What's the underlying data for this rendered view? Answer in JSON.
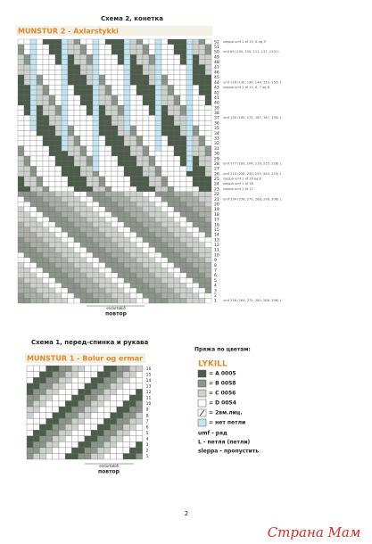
{
  "scheme2": {
    "heading": "Схема 2, конетка",
    "title": "MUNSTUR 2 - Axlarstykki",
    "row_numbers": [
      "1",
      "2",
      "3",
      "4",
      "5",
      "6",
      "7",
      "8",
      "9",
      "10",
      "11",
      "12",
      "13",
      "14",
      "15",
      "16",
      "17",
      "18",
      "19",
      "20",
      "21",
      "22",
      "23",
      "24",
      "25",
      "26",
      "27",
      "28",
      "29",
      "30",
      "31",
      "32",
      "33",
      "34",
      "35",
      "36",
      "37",
      "38",
      "39",
      "40",
      "41",
      "42",
      "43",
      "44",
      "45",
      "46",
      "47",
      "48",
      "49",
      "50",
      "51",
      "52"
    ],
    "notes": [
      {
        "row": 52,
        "text": "sleppa umf 1 af 15, 6 og 7l"
      },
      {
        "row": 50,
        "text": "umf 89 (100, 105, 111, 117, 120) L"
      },
      {
        "row": 44,
        "text": "umf 116 (130, 136, 144, 150, 152) L"
      },
      {
        "row": 43,
        "text": "sleppa umf 1 af 15, 6, 7 og 8"
      },
      {
        "row": 37,
        "text": "umf 150 (165, 175, 187, 187, 190) L"
      },
      {
        "row": 28,
        "text": "umf 177 (189, 204, 216, 225, 228) L"
      },
      {
        "row": 26,
        "text": "umf 210 (228, 240, 255, 264, 270) L"
      },
      {
        "row": 25,
        "text": "sleppa umf 1 af 16 og 8"
      },
      {
        "row": 24,
        "text": "sleppa umf 1 af 18"
      },
      {
        "row": 23,
        "text": "sleppa umf 1 af 17"
      },
      {
        "row": 21,
        "text": "umf 234 (256, 270, 286, 296, 306) L"
      },
      {
        "row": 1,
        "text": "umf 256 (264, 272, 280, 288, 296) L"
      }
    ],
    "repeat_label": "endurtakið",
    "repeat_caption": "повтор"
  },
  "scheme1": {
    "heading": "Схема 1, перед-спинка и рукава",
    "title": "MUNSTUR 1 - Bolur og ermar",
    "row_numbers": [
      "1",
      "2",
      "3",
      "4",
      "5",
      "6",
      "7",
      "8",
      "9",
      "10",
      "11",
      "12",
      "13",
      "14",
      "15",
      "16"
    ],
    "repeat_label": "endurtakið",
    "repeat_caption": "повтор"
  },
  "legend": {
    "heading": "Пряжа по цветам:",
    "title": "LYKILL",
    "items": [
      "= A 0005",
      "= B 0058",
      "= C 0056",
      "= D 0054",
      "= 2вм.лиц.",
      "= нет петли"
    ],
    "notes": [
      "umf - ряд",
      "L - петля (петли)",
      "sleppa - пропустить"
    ]
  },
  "page_number": "2",
  "watermark": "Страна Мам"
}
